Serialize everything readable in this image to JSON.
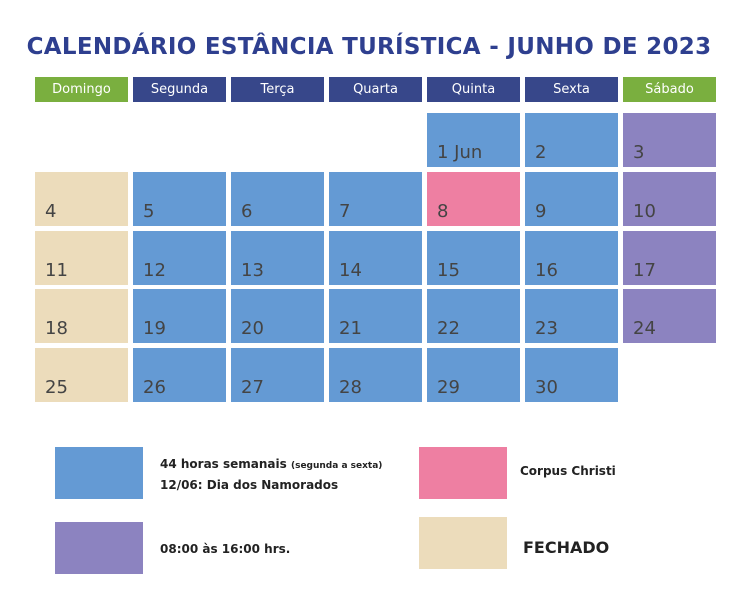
{
  "title": "CALENDÁRIO ESTÂNCIA TURÍSTICA - JUNHO DE 2023",
  "weekdays": [
    {
      "label": "Domingo",
      "color": "#7aaf3f"
    },
    {
      "label": "Segunda",
      "color": "#37478a"
    },
    {
      "label": "Terça",
      "color": "#37478a"
    },
    {
      "label": "Quarta",
      "color": "#37478a"
    },
    {
      "label": "Quinta",
      "color": "#37478a"
    },
    {
      "label": "Sexta",
      "color": "#37478a"
    },
    {
      "label": "Sábado",
      "color": "#7aaf3f"
    }
  ],
  "weeks": [
    [
      null,
      null,
      null,
      null,
      {
        "label": "1 Jun",
        "color": "#649ad4"
      },
      {
        "label": "2",
        "color": "#649ad4"
      },
      {
        "label": "3",
        "color": "#8c83c0"
      }
    ],
    [
      {
        "label": "4",
        "color": "#ecdcbb"
      },
      {
        "label": "5",
        "color": "#649ad4"
      },
      {
        "label": "6",
        "color": "#649ad4"
      },
      {
        "label": "7",
        "color": "#649ad4"
      },
      {
        "label": "8",
        "color": "#ee7fa2"
      },
      {
        "label": "9",
        "color": "#649ad4"
      },
      {
        "label": "10",
        "color": "#8c83c0"
      }
    ],
    [
      {
        "label": "11",
        "color": "#ecdcbb"
      },
      {
        "label": "12",
        "color": "#649ad4"
      },
      {
        "label": "13",
        "color": "#649ad4"
      },
      {
        "label": "14",
        "color": "#649ad4"
      },
      {
        "label": "15",
        "color": "#649ad4"
      },
      {
        "label": "16",
        "color": "#649ad4"
      },
      {
        "label": "17",
        "color": "#8c83c0"
      }
    ],
    [
      {
        "label": "18",
        "color": "#ecdcbb"
      },
      {
        "label": "19",
        "color": "#649ad4"
      },
      {
        "label": "20",
        "color": "#649ad4"
      },
      {
        "label": "21",
        "color": "#649ad4"
      },
      {
        "label": "22",
        "color": "#649ad4"
      },
      {
        "label": "23",
        "color": "#649ad4"
      },
      {
        "label": "24",
        "color": "#8c83c0"
      }
    ],
    [
      {
        "label": "25",
        "color": "#ecdcbb"
      },
      {
        "label": "26",
        "color": "#649ad4"
      },
      {
        "label": "27",
        "color": "#649ad4"
      },
      {
        "label": "28",
        "color": "#649ad4"
      },
      {
        "label": "29",
        "color": "#649ad4"
      },
      {
        "label": "30",
        "color": "#649ad4"
      },
      null
    ]
  ],
  "legend": [
    {
      "color": "#649ad4",
      "lines": [
        "44 horas semanais",
        "12/06: Dia dos Namorados"
      ],
      "note": "(segunda a sexta)"
    },
    {
      "color": "#ee7fa2",
      "lines": [
        "Corpus Christi"
      ]
    },
    {
      "color": "#8c83c0",
      "lines": [
        "08:00 às 16:00 hrs."
      ]
    },
    {
      "color": "#ecdcbb",
      "lines": [
        "FECHADO"
      ]
    }
  ]
}
